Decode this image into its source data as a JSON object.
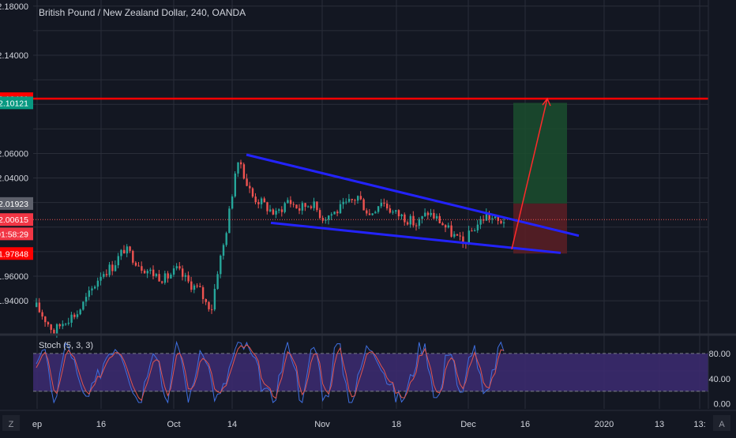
{
  "chart_title": "British Pound / New Zealand Dollar, 240, OANDA",
  "indicator_label": "Stoch (5, 3, 3)",
  "footer": {
    "logo_text": "Z",
    "auto_label": "A"
  },
  "colors": {
    "background": "#131722",
    "grid": "#2a2e39",
    "axis_text": "#d1d4dc",
    "candle_up": "#26a69a",
    "candle_down": "#ef5350",
    "trendline": "#2323ff",
    "target_line": "#ff0000",
    "profit_zone": "#1b4d2e",
    "loss_zone": "#5c1f24",
    "stoch_band": "#3b2a6e",
    "stoch_k": "#3f6fe0",
    "stoch_d": "#e0554f"
  },
  "price_labels": [
    {
      "text": "2.10461",
      "value": 2.10461,
      "bg": "#ff0000"
    },
    {
      "text": "2.10121",
      "value": 2.10121,
      "bg": "#089981"
    },
    {
      "text": "2.01923",
      "value": 2.01923,
      "bg": "#5d606b"
    },
    {
      "text": "2.00615",
      "value": 2.00615,
      "bg": "#f23645"
    },
    {
      "text": "01:58:29",
      "value": 1.9945,
      "bg": "#f23645"
    },
    {
      "text": "1.97848",
      "value": 1.97848,
      "bg": "#ff0000"
    }
  ],
  "chart_data": {
    "type": "candlestick",
    "instrument": "British Pound / New Zealand Dollar",
    "timeframe": "240",
    "source": "OANDA",
    "y_ticks": [
      "2.18000",
      "2.14000",
      "2.06000",
      "2.04000",
      "1.96000",
      "1.94000"
    ],
    "y_tick_values": [
      2.18,
      2.14,
      2.06,
      2.04,
      1.96,
      1.94
    ],
    "ylim": [
      1.915,
      2.185
    ],
    "x_ticks": [
      "ep",
      "16",
      "Oct",
      "14",
      "Nov",
      "18",
      "Dec",
      "16",
      "2020",
      "13",
      "13:"
    ],
    "close_path": [
      [
        0,
        1.935
      ],
      [
        6,
        1.915
      ],
      [
        10,
        1.925
      ],
      [
        14,
        1.93
      ],
      [
        18,
        1.945
      ],
      [
        22,
        1.962
      ],
      [
        26,
        1.968
      ],
      [
        30,
        1.982
      ],
      [
        32,
        1.978
      ],
      [
        36,
        1.968
      ],
      [
        40,
        1.962
      ],
      [
        44,
        1.958
      ],
      [
        48,
        1.965
      ],
      [
        52,
        1.955
      ],
      [
        56,
        1.948
      ],
      [
        58,
        1.938
      ],
      [
        60,
        1.935
      ],
      [
        62,
        1.965
      ],
      [
        64,
        1.985
      ],
      [
        66,
        2.012
      ],
      [
        68,
        2.045
      ],
      [
        70,
        2.052
      ],
      [
        72,
        2.035
      ],
      [
        74,
        2.025
      ],
      [
        78,
        2.018
      ],
      [
        82,
        2.01
      ],
      [
        86,
        2.022
      ],
      [
        90,
        2.015
      ],
      [
        94,
        2.02
      ],
      [
        98,
        2.008
      ],
      [
        102,
        2.012
      ],
      [
        106,
        2.018
      ],
      [
        110,
        2.025
      ],
      [
        114,
        2.01
      ],
      [
        118,
        2.022
      ],
      [
        122,
        2.012
      ],
      [
        126,
        2.008
      ],
      [
        130,
        2.002
      ],
      [
        134,
        2.012
      ],
      [
        138,
        2.005
      ],
      [
        142,
        1.995
      ],
      [
        146,
        1.986
      ],
      [
        150,
        2.0
      ],
      [
        154,
        2.01
      ],
      [
        158,
        2.004
      ],
      [
        160,
        2.006
      ]
    ],
    "trendlines": [
      {
        "name": "upper",
        "p1": [
          70,
          2.059
        ],
        "p2": [
          215,
          1.993
        ]
      },
      {
        "name": "lower",
        "p1": [
          77,
          2.0035
        ],
        "p2": [
          206,
          1.979
        ]
      }
    ],
    "target": {
      "name": "target-level",
      "value": 2.10461
    },
    "position": {
      "x_start": 180,
      "x_end": 196,
      "entry": 2.01923,
      "target": 2.10121,
      "stop": 1.97848,
      "path": [
        [
          180,
          1.982
        ],
        [
          191,
          2.10461
        ]
      ]
    },
    "current_price": 2.00615,
    "stochastic": {
      "name": "Stoch (5, 3, 3)",
      "ticks": [
        "80.00",
        "40.00",
        "0.00"
      ],
      "tick_values": [
        80,
        40,
        0
      ],
      "band": [
        20,
        80
      ],
      "ylim": [
        -8,
        105
      ]
    }
  }
}
